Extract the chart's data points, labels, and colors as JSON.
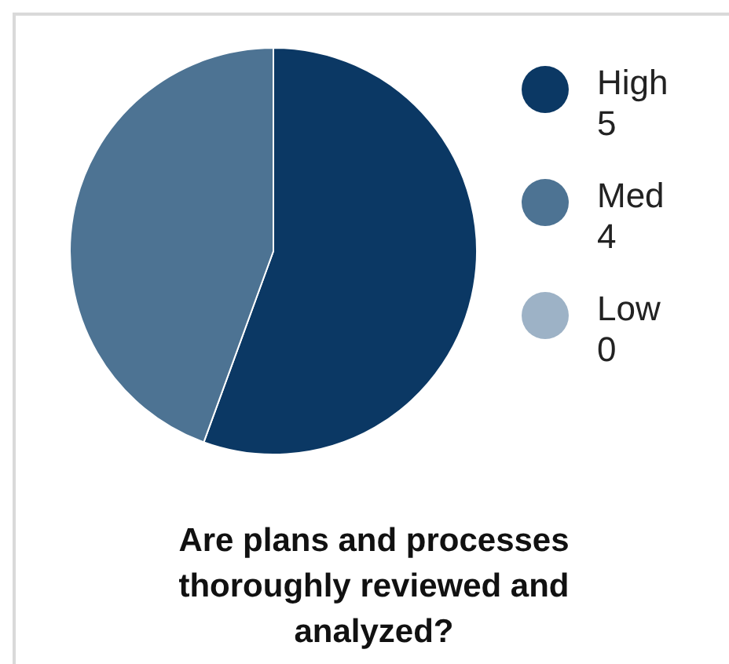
{
  "chart_data": {
    "type": "pie",
    "title": "Are plans and processes thoroughly reviewed and analyzed?",
    "categories": [
      "High",
      "Med",
      "Low"
    ],
    "values": [
      5,
      4,
      0
    ],
    "colors": [
      "#0b3864",
      "#4d7393",
      "#9db2c6"
    ],
    "value_labels": [
      "5",
      "4",
      "0"
    ],
    "legend": "right"
  }
}
